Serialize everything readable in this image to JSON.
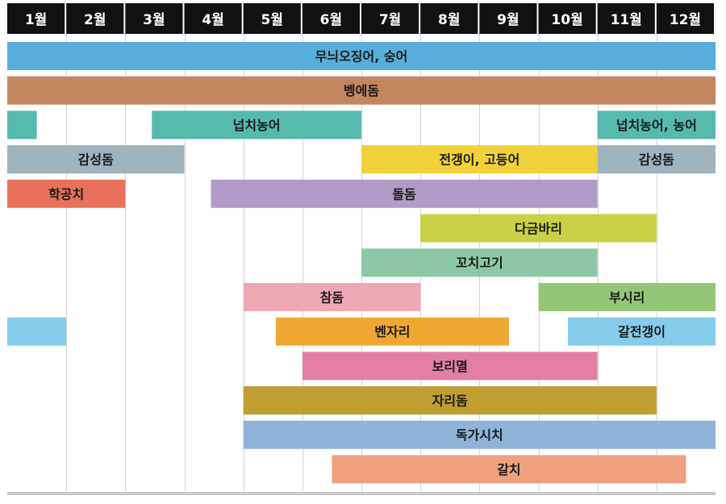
{
  "chart_data": {
    "type": "bar",
    "subtype": "gantt",
    "months": [
      "1월",
      "2월",
      "3월",
      "4월",
      "5월",
      "6월",
      "7월",
      "8월",
      "9월",
      "10월",
      "11월",
      "12월"
    ],
    "x_range": [
      1,
      13
    ],
    "grid": true,
    "bars": [
      {
        "row": 0,
        "label": "무늬오징어, 숭어",
        "start": 1.0,
        "end": 13.0,
        "color": "#58AEDB"
      },
      {
        "row": 1,
        "label": "벵에돔",
        "start": 1.0,
        "end": 13.0,
        "color": "#C4865E"
      },
      {
        "row": 2,
        "label": "",
        "start": 1.0,
        "end": 1.5,
        "color": "#56B9AD"
      },
      {
        "row": 2,
        "label": "넙치농어",
        "start": 3.45,
        "end": 7.0,
        "color": "#56B9AD"
      },
      {
        "row": 2,
        "label": "넙치농어,  농어",
        "start": 11.0,
        "end": 13.0,
        "color": "#56B9AD"
      },
      {
        "row": 3,
        "label": "감성돔",
        "start": 1.0,
        "end": 4.0,
        "color": "#A0B3BE"
      },
      {
        "row": 3,
        "label": "전갱이, 고등어",
        "start": 7.0,
        "end": 11.0,
        "color": "#F1D23B"
      },
      {
        "row": 3,
        "label": "감성돔",
        "start": 11.0,
        "end": 13.0,
        "color": "#A0B3BE"
      },
      {
        "row": 4,
        "label": "학공치",
        "start": 1.0,
        "end": 3.0,
        "color": "#E8715B"
      },
      {
        "row": 4,
        "label": "돌돔",
        "start": 4.45,
        "end": 11.0,
        "color": "#B39BC8"
      },
      {
        "row": 5,
        "label": "다금바리",
        "start": 8.0,
        "end": 12.0,
        "color": "#C9D144"
      },
      {
        "row": 6,
        "label": "꼬치고기",
        "start": 7.0,
        "end": 11.0,
        "color": "#8DC8A4"
      },
      {
        "row": 7,
        "label": "참돔",
        "start": 5.0,
        "end": 8.0,
        "color": "#EEA8B4"
      },
      {
        "row": 7,
        "label": "부시리",
        "start": 10.0,
        "end": 13.0,
        "color": "#95C678"
      },
      {
        "row": 8,
        "label": "",
        "start": 1.0,
        "end": 2.0,
        "color": "#85CCEA"
      },
      {
        "row": 8,
        "label": "벤자리",
        "start": 5.55,
        "end": 9.5,
        "color": "#F0A834"
      },
      {
        "row": 8,
        "label": "갈전갱이",
        "start": 10.5,
        "end": 13.0,
        "color": "#85CCEA"
      },
      {
        "row": 9,
        "label": "보리멸",
        "start": 6.0,
        "end": 11.0,
        "color": "#E37FA6"
      },
      {
        "row": 10,
        "label": "자리돔",
        "start": 5.0,
        "end": 12.0,
        "color": "#C19E32"
      },
      {
        "row": 11,
        "label": "독가시치",
        "start": 5.0,
        "end": 13.0,
        "color": "#8FB3D9"
      },
      {
        "row": 12,
        "label": "갈치",
        "start": 6.5,
        "end": 12.5,
        "color": "#EFA07E"
      }
    ]
  }
}
